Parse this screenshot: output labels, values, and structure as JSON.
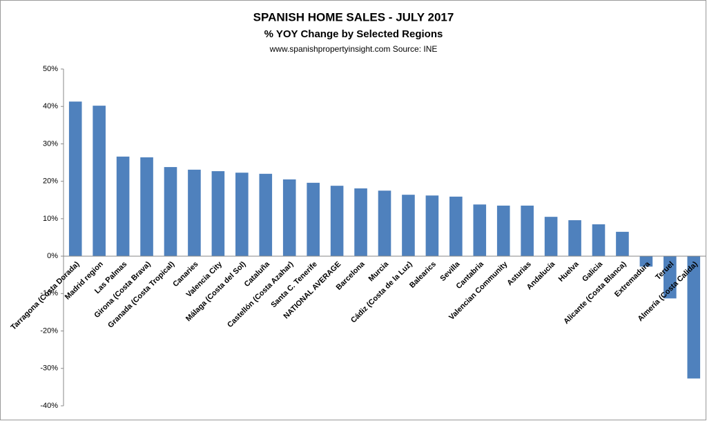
{
  "chart_data": {
    "type": "bar",
    "title": "SPANISH HOME SALES - JULY 2017",
    "subtitle": "% YOY Change by Selected Regions",
    "source": "www.spanishpropertyinsight.com Source: INE",
    "categories": [
      "Tarragona (Costa Dorada)",
      "Madrid region",
      "Las Palmas",
      "Girona (Costa Brava)",
      "Granada (Costa Tropical)",
      "Canaries",
      "Valencia City",
      "Málaga (Costa del Sol)",
      "Cataluña",
      "Castellón (Costa Azahar)",
      "Santa C. Tenerife",
      "NATIONAL AVERAGE",
      "Barcelona",
      "Murcia",
      "Cádiz (Costa de la Luz)",
      "Balearics",
      "Sevilla",
      "Cantabria",
      "Valencian Community",
      "Asturias",
      "Andalucía",
      "Huelva",
      "Galicia",
      "Alicante (Costa Blanca)",
      "Extremadura",
      "Teruel",
      "Almería (Costa Calida)"
    ],
    "values": [
      41.3,
      40.2,
      26.6,
      26.4,
      23.8,
      23.1,
      22.7,
      22.3,
      22,
      20.5,
      19.6,
      18.8,
      18.1,
      17.5,
      16.4,
      16.2,
      15.9,
      13.8,
      13.5,
      13.5,
      10.5,
      9.6,
      8.5,
      6.5,
      -2.8,
      -11.3,
      -32.7
    ],
    "color": "#4f81bd",
    "ylim": [
      -40,
      50
    ],
    "yticks": [
      {
        "value": -40,
        "label": "-40%"
      },
      {
        "value": -30,
        "label": "-30%"
      },
      {
        "value": -20,
        "label": "-20%"
      },
      {
        "value": -10,
        "label": "-10%"
      },
      {
        "value": 0,
        "label": "0%"
      },
      {
        "value": 10,
        "label": "10%"
      },
      {
        "value": 20,
        "label": "20%"
      },
      {
        "value": 30,
        "label": "30%"
      },
      {
        "value": 40,
        "label": "40%"
      },
      {
        "value": 50,
        "label": "50%"
      }
    ],
    "grid": false
  }
}
